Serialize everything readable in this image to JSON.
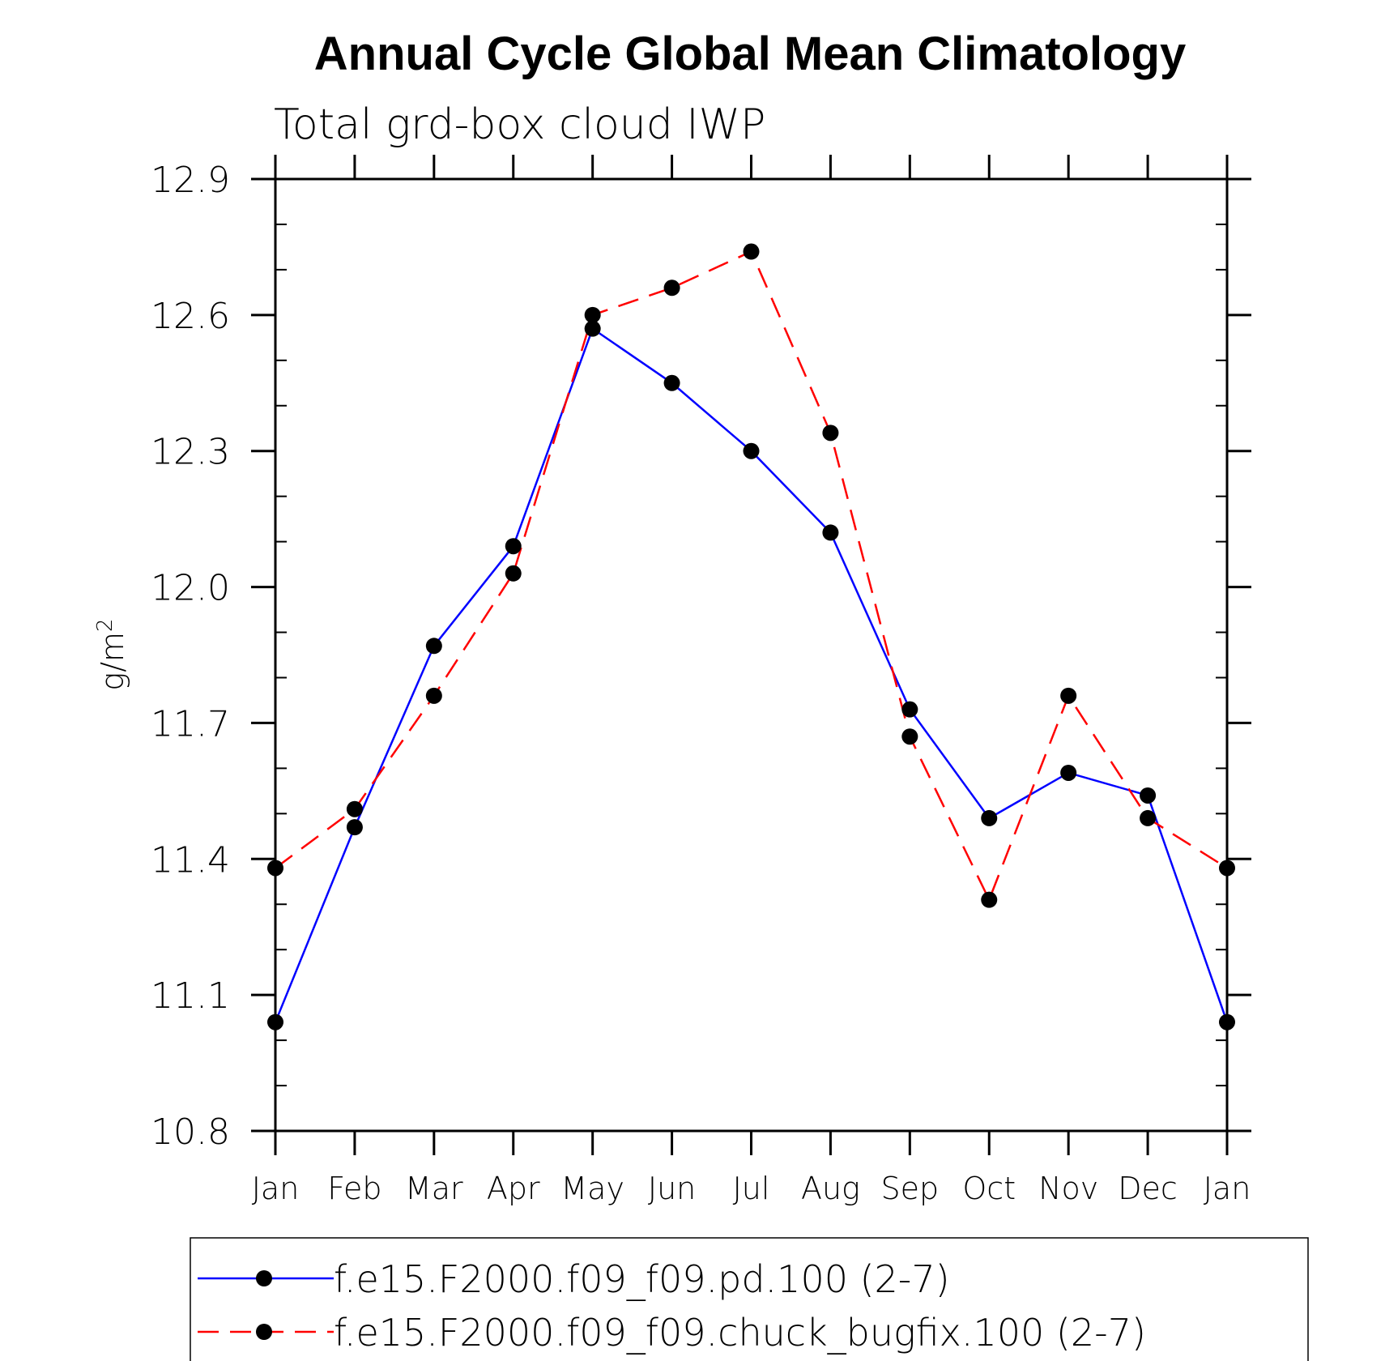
{
  "chart_data": {
    "type": "line",
    "title": "Annual Cycle Global Mean Climatology",
    "subtitle": "Total grd-box cloud IWP",
    "ylabel": "g/m",
    "ylabel_superscript": "2",
    "xlabel": "",
    "ylim": [
      10.8,
      12.9
    ],
    "yticks": [
      10.8,
      11.1,
      11.4,
      11.7,
      12.0,
      12.3,
      12.6,
      12.9
    ],
    "ytick_labels": [
      "10.8",
      "11.1",
      "11.4",
      "11.7",
      "12.0",
      "12.3",
      "12.6",
      "12.9"
    ],
    "categories": [
      "Jan",
      "Feb",
      "Mar",
      "Apr",
      "May",
      "Jun",
      "Jul",
      "Aug",
      "Sep",
      "Oct",
      "Nov",
      "Dec",
      "Jan"
    ],
    "series": [
      {
        "name": "f.e15.F2000.f09_f09.pd.100 (2-7)",
        "color": "#0000ff",
        "dash": "solid",
        "values": [
          11.04,
          11.47,
          11.87,
          12.09,
          12.57,
          12.45,
          12.3,
          12.12,
          11.73,
          11.49,
          11.59,
          11.54,
          11.04
        ]
      },
      {
        "name": "f.e15.F2000.f09_f09.chuck_bugfix.100 (2-7)",
        "color": "#ff0000",
        "dash": "dashed",
        "values": [
          11.38,
          11.51,
          11.76,
          12.03,
          12.6,
          12.66,
          12.74,
          12.34,
          11.67,
          11.31,
          11.76,
          11.49,
          11.38
        ]
      }
    ],
    "marker_color": "#000000",
    "legend_position": "bottom"
  }
}
